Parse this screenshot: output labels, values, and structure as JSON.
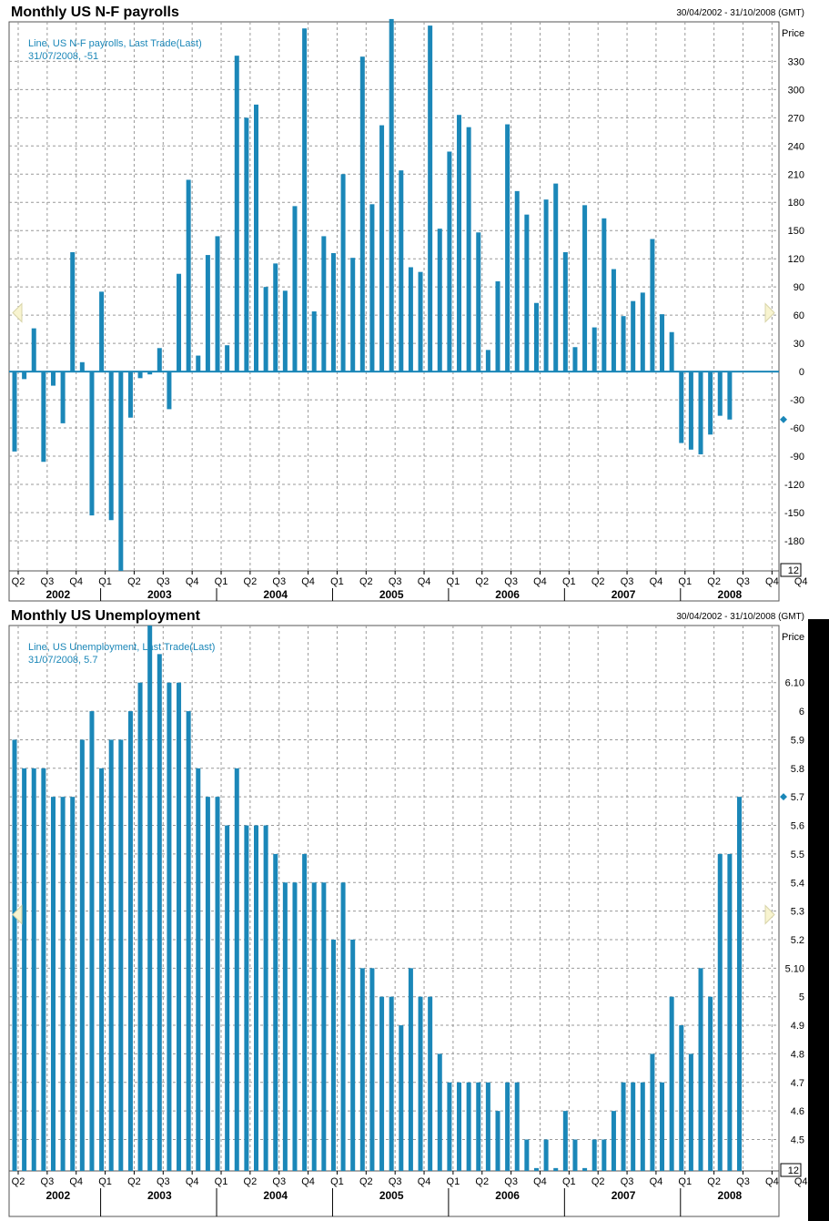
{
  "chart_data": [
    {
      "type": "bar",
      "title": "Monthly US N-F payrolls",
      "date_range": "30/04/2002 - 31/10/2008 (GMT)",
      "ylabel": "Price",
      "legend": {
        "line1": "Line, US N-F payrolls, Last Trade(Last)",
        "line2": "31/07/2008, -51"
      },
      "last_value_marker": -51,
      "ylim": [
        -212,
        372
      ],
      "yticks": [
        -180,
        -150,
        -120,
        -90,
        -60,
        -30,
        0,
        30,
        60,
        90,
        120,
        150,
        180,
        210,
        240,
        270,
        300,
        330
      ],
      "ytick_labels": [
        "-180",
        "-150",
        "-120",
        "-90",
        "-60",
        "-30",
        "0",
        "30",
        "60",
        "90",
        "120",
        "150",
        "180",
        "210",
        "240",
        "270",
        "300",
        "330"
      ],
      "box_label": "12",
      "x_start": "2002-04",
      "quarter_labels": [
        "Q2",
        "Q3",
        "Q4",
        "Q1",
        "Q2",
        "Q3",
        "Q4",
        "Q1",
        "Q2",
        "Q3",
        "Q4",
        "Q1",
        "Q2",
        "Q3",
        "Q4",
        "Q1",
        "Q2",
        "Q3",
        "Q4",
        "Q1",
        "Q2",
        "Q3",
        "Q4",
        "Q1",
        "Q2",
        "Q3",
        "Q4"
      ],
      "years": [
        "2002",
        "2003",
        "2004",
        "2005",
        "2006",
        "2007",
        "2008"
      ],
      "grid": true,
      "values": [
        -85,
        -8,
        46,
        -96,
        -15,
        -55,
        127,
        10,
        -153,
        85,
        -158,
        -212,
        -49,
        -7,
        -3,
        25,
        -40,
        104,
        204,
        17,
        124,
        144,
        28,
        336,
        270,
        284,
        90,
        115,
        86,
        176,
        365,
        64,
        144,
        126,
        210,
        121,
        335,
        178,
        262,
        375,
        214,
        111,
        106,
        368,
        152,
        234,
        273,
        260,
        148,
        23,
        96,
        263,
        192,
        167,
        73,
        183,
        200,
        127,
        26,
        177,
        47,
        163,
        109,
        59,
        75,
        84,
        141,
        61,
        42,
        -76,
        -83,
        -88,
        -67,
        -47,
        -51
      ]
    },
    {
      "type": "bar",
      "title": "Monthly US Unemployment",
      "date_range": "30/04/2002 - 31/10/2008 (GMT)",
      "ylabel": "Price",
      "legend": {
        "line1": "Line, US Unemployment, Last Trade(Last)",
        "line2": "31/07/2008, 5.7"
      },
      "last_value_marker": 5.7,
      "ylim": [
        4.39,
        6.3
      ],
      "yticks": [
        4.5,
        4.6,
        4.7,
        4.8,
        4.9,
        5.0,
        5.1,
        5.2,
        5.3,
        5.4,
        5.5,
        5.6,
        5.7,
        5.8,
        5.9,
        6.0,
        6.1
      ],
      "ytick_labels": [
        "4.5",
        "4.6",
        "4.7",
        "4.8",
        "4.9",
        "5",
        "5.10",
        "5.2",
        "5.3",
        "5.4",
        "5.5",
        "5.6",
        "5.7",
        "5.8",
        "5.9",
        "6",
        "6.10"
      ],
      "box_label": "12",
      "x_start": "2002-04",
      "quarter_labels": [
        "Q2",
        "Q3",
        "Q4",
        "Q1",
        "Q2",
        "Q3",
        "Q4",
        "Q1",
        "Q2",
        "Q3",
        "Q4",
        "Q1",
        "Q2",
        "Q3",
        "Q4",
        "Q1",
        "Q2",
        "Q3",
        "Q4",
        "Q1",
        "Q2",
        "Q3",
        "Q4",
        "Q1",
        "Q2",
        "Q3",
        "Q4"
      ],
      "years": [
        "2002",
        "2003",
        "2004",
        "2005",
        "2006",
        "2007",
        "2008"
      ],
      "grid": true,
      "values": [
        5.9,
        5.8,
        5.8,
        5.8,
        5.7,
        5.7,
        5.7,
        5.9,
        6.0,
        5.8,
        5.9,
        5.9,
        6.0,
        6.1,
        6.3,
        6.2,
        6.1,
        6.1,
        6.0,
        5.8,
        5.7,
        5.7,
        5.6,
        5.8,
        5.6,
        5.6,
        5.6,
        5.5,
        5.4,
        5.4,
        5.5,
        5.4,
        5.4,
        5.2,
        5.4,
        5.2,
        5.1,
        5.1,
        5.0,
        5.0,
        4.9,
        5.1,
        5.0,
        5.0,
        4.8,
        4.7,
        4.7,
        4.7,
        4.7,
        4.7,
        4.6,
        4.7,
        4.7,
        4.5,
        4.4,
        4.5,
        4.4,
        4.6,
        4.5,
        4.4,
        4.5,
        4.5,
        4.6,
        4.7,
        4.7,
        4.7,
        4.8,
        4.7,
        5.0,
        4.9,
        4.8,
        5.1,
        5.0,
        5.5,
        5.5,
        5.7
      ]
    }
  ]
}
